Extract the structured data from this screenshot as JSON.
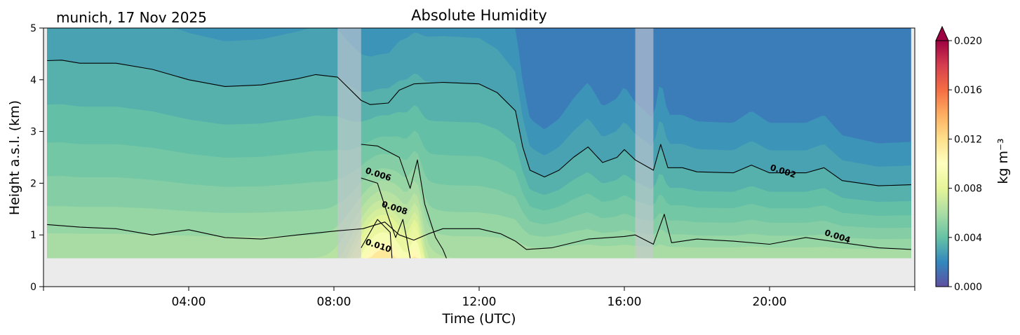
{
  "header": {
    "site_date": "munich, 17 Nov 2025"
  },
  "chart_data": {
    "type": "heatmap",
    "title": "Absolute Humidity",
    "xlabel": "Time (UTC)",
    "ylabel": "Height a.s.l. (km)",
    "colorbar_label": "kg m⁻³",
    "x_unit": "hours UTC",
    "xlim": [
      0,
      24
    ],
    "ylim": [
      0,
      5
    ],
    "x_ticks": [
      4,
      8,
      12,
      16,
      20
    ],
    "x_tick_labels": [
      "04:00",
      "08:00",
      "12:00",
      "16:00",
      "20:00"
    ],
    "y_ticks": [
      0,
      1,
      2,
      3,
      4,
      5
    ],
    "y_tick_labels": [
      "0",
      "1",
      "2",
      "3",
      "4",
      "5"
    ],
    "colorbar_ticks": [
      0.0,
      0.004,
      0.008,
      0.012,
      0.016,
      0.02
    ],
    "colorbar_tick_labels": [
      "0.000",
      "0.004",
      "0.008",
      "0.012",
      "0.016",
      "0.020"
    ],
    "colorbar_range": [
      0.0,
      0.02
    ],
    "colorbar_extend": "max",
    "colormap": "Spectral_r",
    "colormap_stops": [
      "#5e4fa2",
      "#3288bd",
      "#66c2a5",
      "#abdda4",
      "#e6f598",
      "#ffffbf",
      "#fee08b",
      "#fdae61",
      "#f46d43",
      "#d53e4f",
      "#9e0142"
    ],
    "data_extent": {
      "x": [
        0.1,
        23.9
      ],
      "y": [
        0.55,
        5.0
      ]
    },
    "no_data_color": "#ebebeb",
    "gap_color": "#c8c8d2",
    "data_gaps": [
      [
        8.1,
        8.75
      ],
      [
        16.3,
        16.8
      ]
    ],
    "field_levels": [
      0.002,
      0.0025,
      0.003,
      0.0035,
      0.004,
      0.0045,
      0.005,
      0.0055,
      0.006,
      0.0065,
      0.007,
      0.0075,
      0.008,
      0.009,
      0.01,
      0.011
    ],
    "contour_lines": [
      {
        "level": 0.002,
        "label": "0.002",
        "label_at": [
          20.0,
          2.26
        ],
        "points": [
          [
            0.1,
            4.37
          ],
          [
            0.5,
            4.38
          ],
          [
            1.0,
            4.32
          ],
          [
            2.0,
            4.32
          ],
          [
            3.0,
            4.2
          ],
          [
            4.0,
            4.0
          ],
          [
            5.0,
            3.87
          ],
          [
            6.0,
            3.9
          ],
          [
            7.0,
            4.02
          ],
          [
            7.5,
            4.1
          ],
          [
            8.1,
            4.05
          ],
          [
            8.75,
            3.6
          ],
          [
            9.0,
            3.52
          ],
          [
            9.5,
            3.55
          ],
          [
            9.8,
            3.8
          ],
          [
            10.2,
            3.92
          ],
          [
            11.0,
            3.95
          ],
          [
            12.0,
            3.92
          ],
          [
            12.5,
            3.75
          ],
          [
            13.0,
            3.4
          ],
          [
            13.2,
            2.7
          ],
          [
            13.4,
            2.25
          ],
          [
            13.8,
            2.12
          ],
          [
            14.2,
            2.25
          ],
          [
            14.6,
            2.5
          ],
          [
            15.0,
            2.7
          ],
          [
            15.4,
            2.4
          ],
          [
            15.8,
            2.5
          ],
          [
            16.0,
            2.65
          ],
          [
            16.3,
            2.45
          ],
          [
            16.8,
            2.25
          ],
          [
            17.0,
            2.75
          ],
          [
            17.2,
            2.3
          ],
          [
            17.6,
            2.3
          ],
          [
            18.0,
            2.22
          ],
          [
            19.0,
            2.2
          ],
          [
            19.5,
            2.35
          ],
          [
            20.0,
            2.2
          ],
          [
            21.0,
            2.2
          ],
          [
            21.5,
            2.3
          ],
          [
            22.0,
            2.05
          ],
          [
            23.0,
            1.95
          ],
          [
            23.9,
            1.97
          ]
        ]
      },
      {
        "level": 0.004,
        "label": "0.004",
        "label_at": [
          21.5,
          1.0
        ],
        "points": [
          [
            0.1,
            1.2
          ],
          [
            1.0,
            1.15
          ],
          [
            2.0,
            1.12
          ],
          [
            3.0,
            1.0
          ],
          [
            4.0,
            1.1
          ],
          [
            5.0,
            0.95
          ],
          [
            6.0,
            0.92
          ],
          [
            7.0,
            1.0
          ],
          [
            8.1,
            1.08
          ],
          [
            8.8,
            1.12
          ],
          [
            9.4,
            1.25
          ],
          [
            9.8,
            1.0
          ],
          [
            10.2,
            0.9
          ],
          [
            10.6,
            1.02
          ],
          [
            11.0,
            1.12
          ],
          [
            12.0,
            1.12
          ],
          [
            12.6,
            1.02
          ],
          [
            13.0,
            0.88
          ],
          [
            13.3,
            0.72
          ],
          [
            14.0,
            0.75
          ],
          [
            15.0,
            0.92
          ],
          [
            16.0,
            0.97
          ],
          [
            16.3,
            1.0
          ],
          [
            16.8,
            0.82
          ],
          [
            17.1,
            1.4
          ],
          [
            17.3,
            0.85
          ],
          [
            18.0,
            0.92
          ],
          [
            19.0,
            0.88
          ],
          [
            20.0,
            0.82
          ],
          [
            21.0,
            0.95
          ],
          [
            22.0,
            0.85
          ],
          [
            23.0,
            0.75
          ],
          [
            23.9,
            0.72
          ]
        ]
      },
      {
        "level": 0.006,
        "label": "0.006",
        "label_at": [
          8.85,
          2.2
        ],
        "points": [
          [
            8.75,
            2.75
          ],
          [
            9.2,
            2.72
          ],
          [
            9.8,
            2.5
          ],
          [
            10.1,
            1.9
          ],
          [
            10.3,
            2.45
          ],
          [
            10.5,
            1.6
          ],
          [
            10.8,
            0.95
          ],
          [
            11.0,
            0.72
          ],
          [
            11.1,
            0.55
          ]
        ]
      },
      {
        "level": 0.008,
        "label": "0.008",
        "label_at": [
          9.3,
          1.55
        ],
        "points": [
          [
            8.75,
            2.1
          ],
          [
            9.2,
            2.0
          ],
          [
            9.5,
            1.35
          ],
          [
            9.7,
            0.95
          ],
          [
            9.9,
            1.3
          ],
          [
            10.0,
            0.95
          ],
          [
            10.1,
            0.55
          ]
        ]
      },
      {
        "level": 0.01,
        "label": "0.010",
        "label_at": [
          8.85,
          0.82
        ],
        "points": [
          [
            8.75,
            0.75
          ],
          [
            9.2,
            1.3
          ],
          [
            9.55,
            1.05
          ],
          [
            9.6,
            0.55
          ]
        ]
      }
    ]
  }
}
